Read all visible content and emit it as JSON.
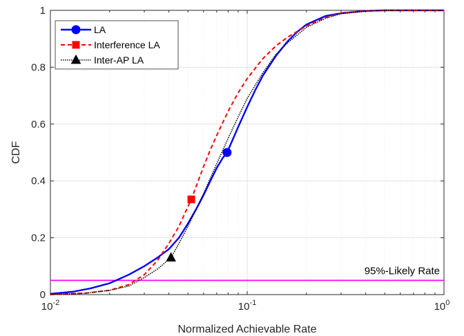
{
  "chart_data": {
    "type": "line",
    "xlabel": "Normalized Achievable Rate",
    "ylabel": "CDF",
    "xscale": "log",
    "xlim": [
      0.01,
      1
    ],
    "ylim": [
      0,
      1
    ],
    "grid": true,
    "legend_position": "top-left",
    "x_ticks": [
      {
        "value": 0.01,
        "base": "10",
        "exp": "-2"
      },
      {
        "value": 0.1,
        "base": "10",
        "exp": "-1"
      },
      {
        "value": 1,
        "base": "10",
        "exp": "0"
      }
    ],
    "y_ticks": [
      {
        "value": 0,
        "label": "0"
      },
      {
        "value": 0.2,
        "label": "0.2"
      },
      {
        "value": 0.4,
        "label": "0.4"
      },
      {
        "value": 0.6,
        "label": "0.6"
      },
      {
        "value": 0.8,
        "label": "0.8"
      },
      {
        "value": 1,
        "label": "1"
      }
    ],
    "series": [
      {
        "name": "LA",
        "color": "#0000ff",
        "line_style": "solid",
        "marker": "circle",
        "marker_point": [
          0.079,
          0.5
        ],
        "x": [
          0.01,
          0.013,
          0.016,
          0.02,
          0.025,
          0.03,
          0.035,
          0.04,
          0.045,
          0.05,
          0.055,
          0.06,
          0.065,
          0.07,
          0.075,
          0.079,
          0.085,
          0.09,
          0.1,
          0.11,
          0.12,
          0.14,
          0.16,
          0.18,
          0.2,
          0.25,
          0.3,
          0.4,
          0.5,
          1
        ],
        "y": [
          0.003,
          0.01,
          0.022,
          0.04,
          0.07,
          0.1,
          0.13,
          0.16,
          0.2,
          0.25,
          0.3,
          0.35,
          0.4,
          0.445,
          0.48,
          0.5,
          0.55,
          0.59,
          0.66,
          0.72,
          0.77,
          0.84,
          0.89,
          0.925,
          0.95,
          0.98,
          0.99,
          0.998,
          1.0,
          1.0
        ]
      },
      {
        "name": "Interference LA",
        "color": "#ff0000",
        "line_style": "dashed",
        "marker": "square",
        "marker_point": [
          0.052,
          0.335
        ],
        "x": [
          0.01,
          0.015,
          0.02,
          0.025,
          0.03,
          0.035,
          0.04,
          0.045,
          0.05,
          0.052,
          0.055,
          0.06,
          0.065,
          0.07,
          0.08,
          0.09,
          0.1,
          0.12,
          0.14,
          0.16,
          0.2,
          0.25,
          0.3,
          0.4,
          0.5,
          1
        ],
        "y": [
          0.0,
          0.005,
          0.015,
          0.035,
          0.07,
          0.12,
          0.18,
          0.24,
          0.31,
          0.335,
          0.38,
          0.45,
          0.51,
          0.56,
          0.645,
          0.71,
          0.76,
          0.83,
          0.875,
          0.905,
          0.945,
          0.975,
          0.99,
          0.998,
          1.0,
          1.0
        ]
      },
      {
        "name": "Inter-AP LA",
        "color": "#000000",
        "line_style": "dotted",
        "marker": "triangle",
        "marker_point": [
          0.041,
          0.13
        ],
        "x": [
          0.01,
          0.015,
          0.02,
          0.025,
          0.03,
          0.035,
          0.041,
          0.045,
          0.05,
          0.055,
          0.06,
          0.065,
          0.07,
          0.08,
          0.09,
          0.1,
          0.12,
          0.14,
          0.16,
          0.2,
          0.25,
          0.3,
          0.4,
          0.5,
          1
        ],
        "y": [
          0.0,
          0.005,
          0.015,
          0.03,
          0.06,
          0.09,
          0.13,
          0.18,
          0.24,
          0.3,
          0.355,
          0.41,
          0.46,
          0.55,
          0.625,
          0.69,
          0.78,
          0.845,
          0.885,
          0.94,
          0.972,
          0.988,
          0.997,
          1.0,
          1.0
        ]
      }
    ],
    "reference_line": {
      "y": 0.05,
      "color": "#ff00ff",
      "label": "95%-Likely Rate"
    }
  }
}
